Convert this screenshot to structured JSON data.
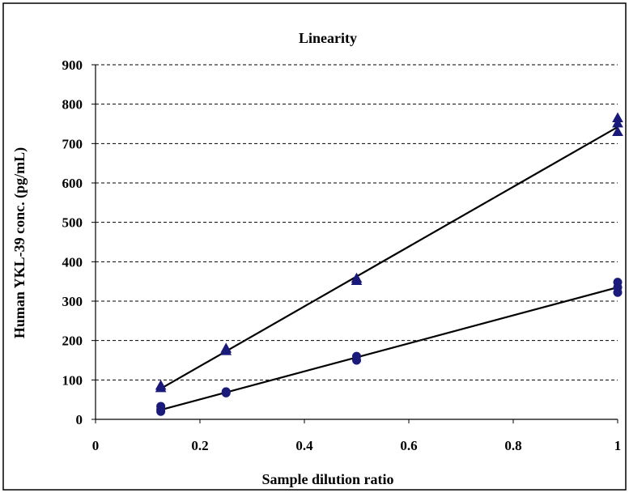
{
  "chart_data": {
    "type": "scatter",
    "title": "Linearity",
    "xlabel": "Sample dilution ratio",
    "ylabel": "Human YKL-39 conc. (pg/mL)",
    "xlim": [
      0,
      1
    ],
    "ylim": [
      0,
      900
    ],
    "x_ticks": [
      "0",
      "0.2",
      "0.4",
      "0.6",
      "0.8",
      "1"
    ],
    "y_ticks": [
      "0",
      "100",
      "200",
      "300",
      "400",
      "500",
      "600",
      "700",
      "800",
      "900"
    ],
    "grid": "horizontal dashed",
    "legend": "none",
    "series": [
      {
        "marker": "triangle",
        "color": "#1a1a7a",
        "points": [
          {
            "x": 0.125,
            "y": 86
          },
          {
            "x": 0.125,
            "y": 80
          },
          {
            "x": 0.25,
            "y": 180
          },
          {
            "x": 0.25,
            "y": 174
          },
          {
            "x": 0.5,
            "y": 358
          },
          {
            "x": 0.5,
            "y": 352
          },
          {
            "x": 1,
            "y": 765
          },
          {
            "x": 1,
            "y": 752
          },
          {
            "x": 1,
            "y": 730
          }
        ],
        "trendline": {
          "x": [
            0.125,
            1
          ],
          "y": [
            78,
            742
          ]
        }
      },
      {
        "marker": "circle",
        "color": "#1a1a7a",
        "points": [
          {
            "x": 0.125,
            "y": 33
          },
          {
            "x": 0.125,
            "y": 25
          },
          {
            "x": 0.125,
            "y": 20
          },
          {
            "x": 0.25,
            "y": 70
          },
          {
            "x": 0.25,
            "y": 67
          },
          {
            "x": 0.5,
            "y": 160
          },
          {
            "x": 0.5,
            "y": 150
          },
          {
            "x": 1,
            "y": 348
          },
          {
            "x": 1,
            "y": 335
          },
          {
            "x": 1,
            "y": 322
          }
        ],
        "trendline": {
          "x": [
            0.125,
            1
          ],
          "y": [
            24,
            335
          ]
        }
      }
    ]
  }
}
